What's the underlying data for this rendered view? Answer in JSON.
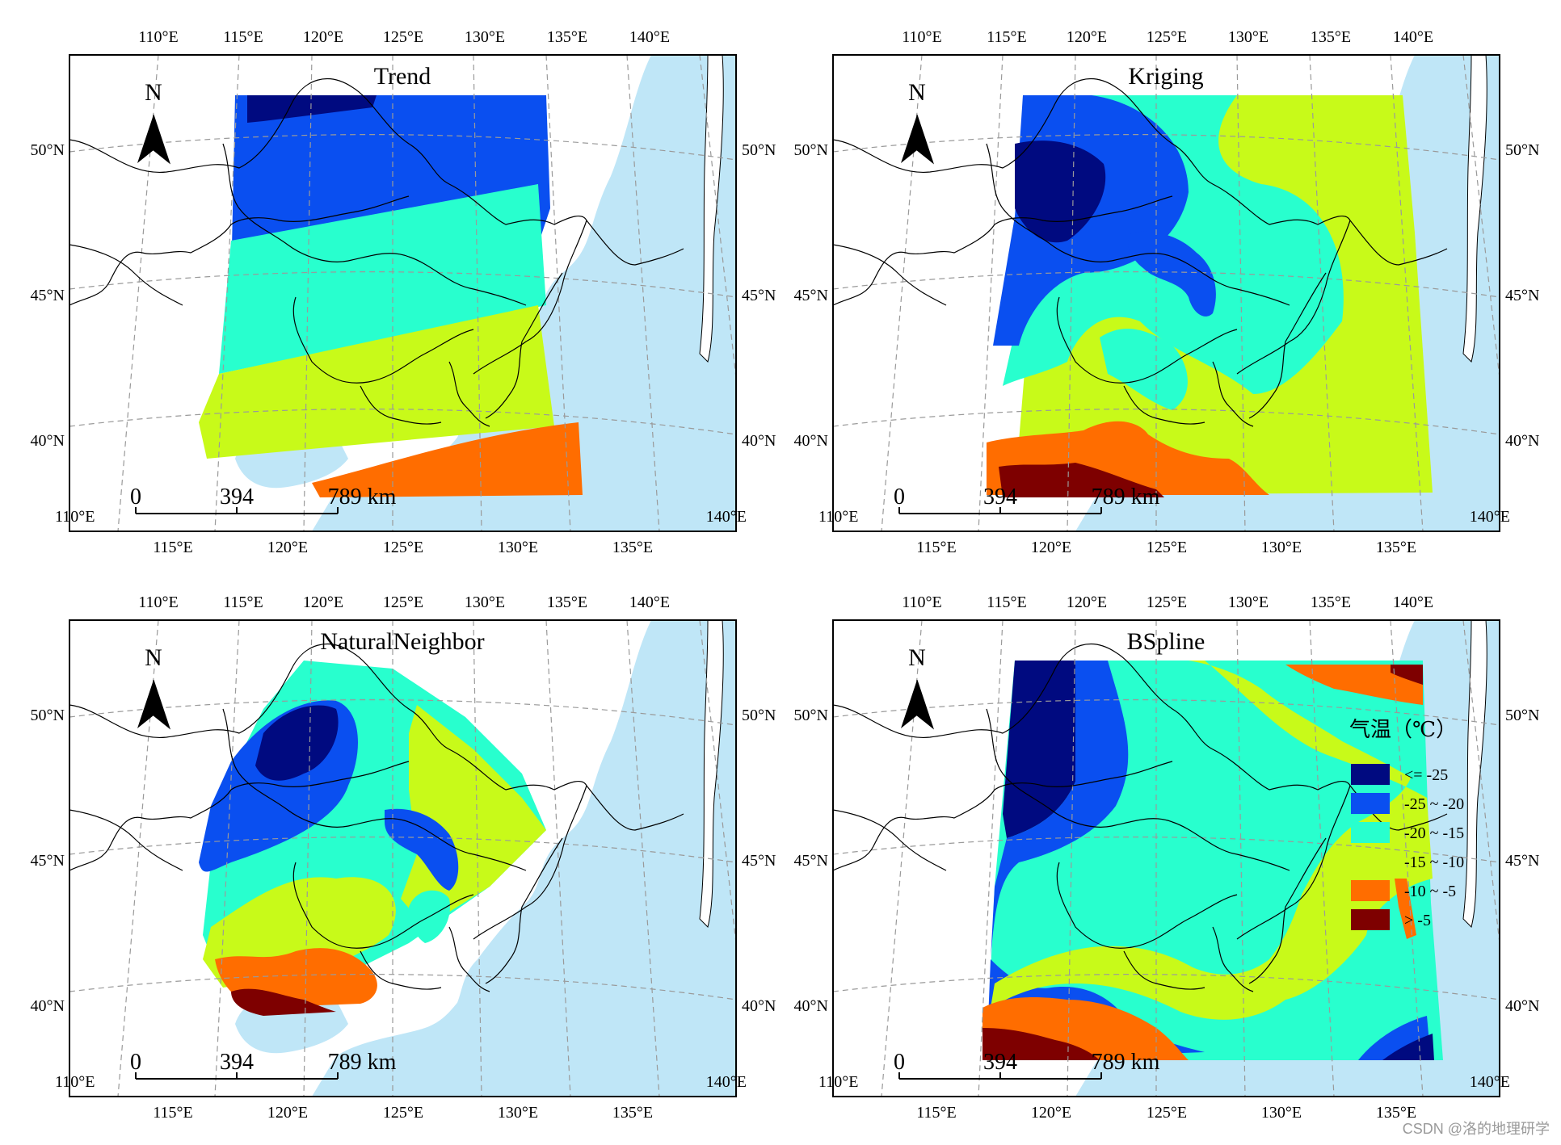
{
  "panels": [
    {
      "title": "Trend",
      "method": "trend"
    },
    {
      "title": "Kriging",
      "method": "kriging"
    },
    {
      "title": "NaturalNeighbor",
      "method": "natural"
    },
    {
      "title": "BSpline",
      "method": "bspline"
    }
  ],
  "top_lon_labels": [
    "110°E",
    "115°E",
    "120°E",
    "125°E",
    "130°E",
    "135°E",
    "140°E"
  ],
  "bottom_lon_labels": [
    "115°E",
    "120°E",
    "125°E",
    "130°E",
    "135°E"
  ],
  "lat_labels": [
    "50°N",
    "45°N",
    "40°N"
  ],
  "corner_lon_labels": [
    "110°E",
    "140°E"
  ],
  "north_arrow_label": "N",
  "scale_bar": {
    "labels": [
      "0",
      "394",
      "789 km"
    ]
  },
  "legend": {
    "title": "气温（℃）",
    "classes": [
      {
        "label": "<= -25",
        "color": "#000a80"
      },
      {
        "label": "-25 ~ -20",
        "color": "#0a4ff0"
      },
      {
        "label": "-20 ~ -15",
        "color": "#28ffce"
      },
      {
        "label": "-15 ~ -10",
        "color": "#c8fa19"
      },
      {
        "label": "-10 ~ -5",
        "color": "#ff6d00"
      },
      {
        "label": "> -5",
        "color": "#7e0000"
      }
    ]
  },
  "colors": {
    "sea": "#bfe6f7",
    "land": "#ffffff",
    "grid": "#9a9a9a",
    "border": "#000000"
  },
  "watermark": "CSDN @洛的地理研学"
}
